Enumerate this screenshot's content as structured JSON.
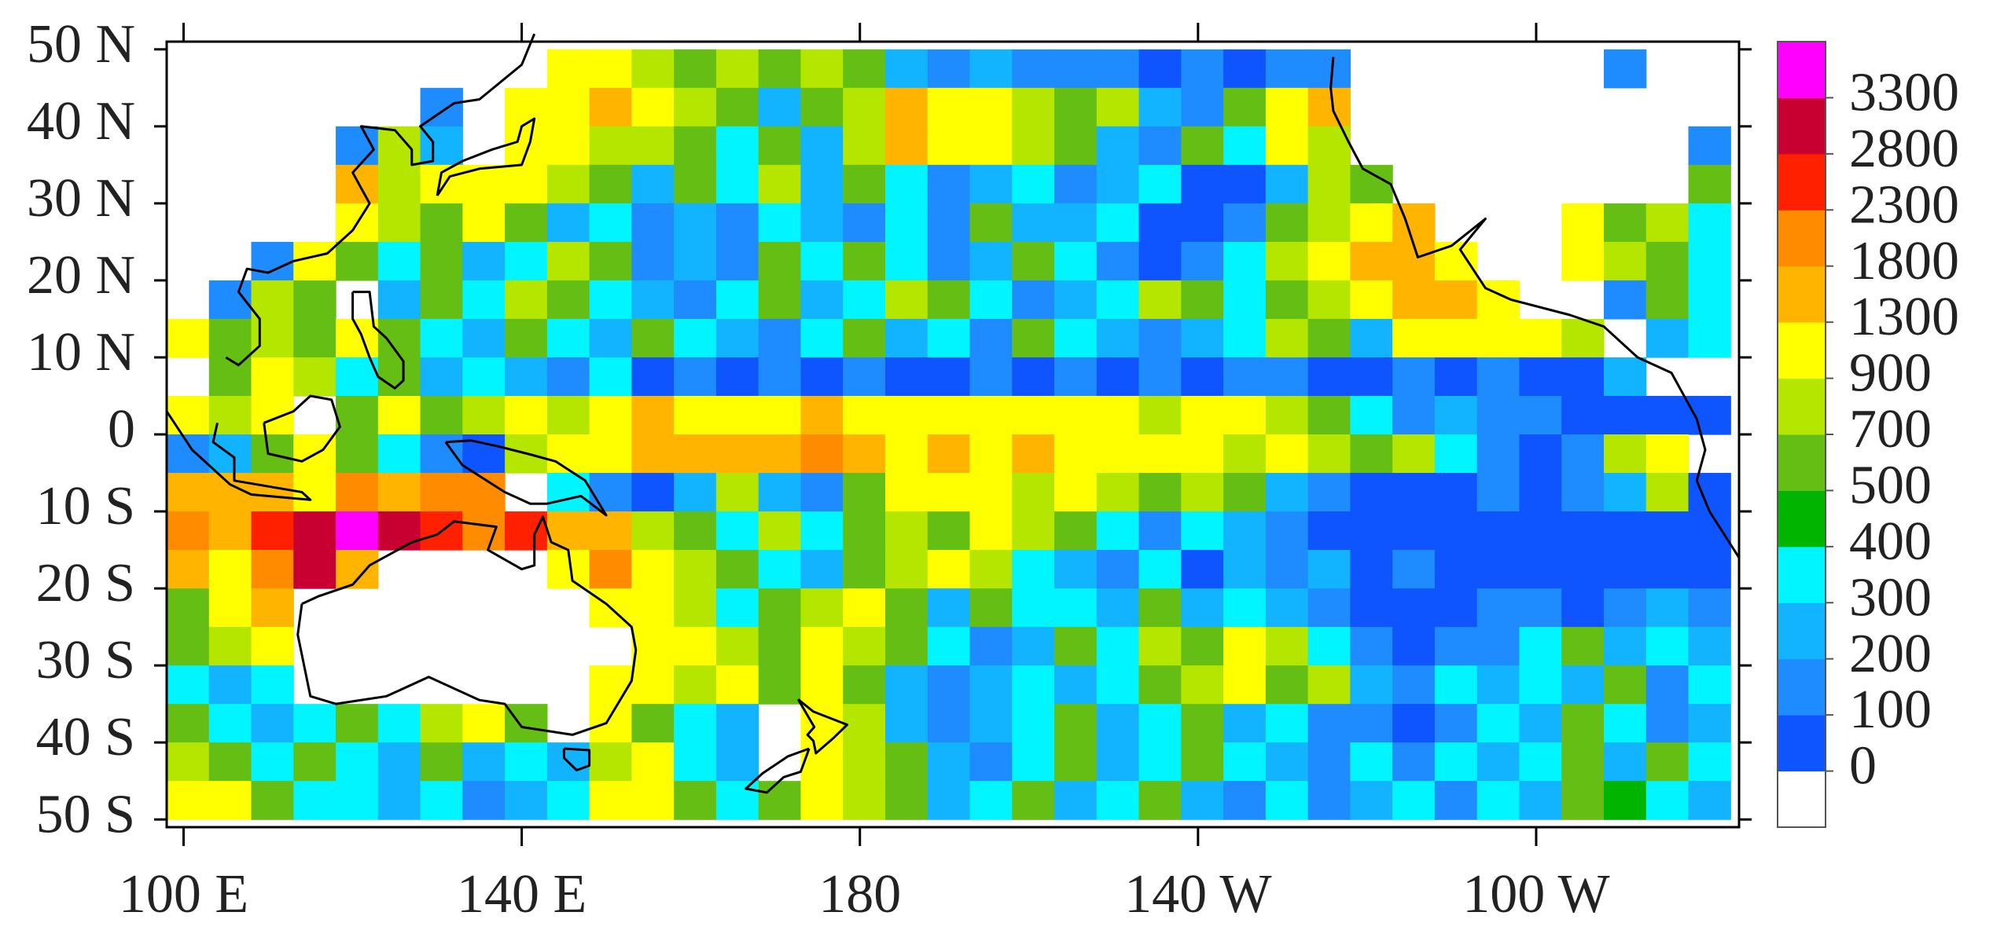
{
  "chart_data": {
    "type": "heatmap",
    "x": [
      100.5,
      105.5,
      110.5,
      115.5,
      120.5,
      125.5,
      130.5,
      135.5,
      140.5,
      145.5,
      150.5,
      155.5,
      160.5,
      165.5,
      170.5,
      175.5,
      180.5,
      185.5,
      190.5,
      195.5,
      200.5,
      205.5,
      210.5,
      215.5,
      220.5,
      225.5,
      230.5,
      235.5,
      240.5,
      245.5,
      250.5,
      255.5,
      260.5,
      265.5,
      270.5,
      275.5,
      280.5
    ],
    "y": [
      47.5,
      42.5,
      37.5,
      32.5,
      27.5,
      22.5,
      17.5,
      12.5,
      7.5,
      2.5,
      -2.5,
      -7.5,
      -12.5,
      -17.5,
      -22.5,
      -27.5,
      -32.5,
      -37.5,
      -42.5,
      -47.5
    ],
    "z": [
      [
        null,
        null,
        null,
        null,
        null,
        null,
        null,
        null,
        null,
        1100,
        1100,
        800,
        600,
        800,
        600,
        800,
        600,
        250,
        150,
        250,
        150,
        150,
        150,
        50,
        150,
        50,
        150,
        150,
        null,
        null,
        null,
        null,
        null,
        null,
        150,
        null,
        null
      ],
      [
        null,
        null,
        null,
        null,
        null,
        null,
        150,
        null,
        1100,
        1100,
        1550,
        1100,
        800,
        600,
        250,
        600,
        800,
        1550,
        1100,
        1100,
        800,
        600,
        800,
        250,
        150,
        600,
        1100,
        1550,
        null,
        null,
        null,
        null,
        null,
        null,
        null,
        null,
        null
      ],
      [
        null,
        null,
        null,
        null,
        150,
        800,
        250,
        null,
        1100,
        1100,
        800,
        800,
        600,
        350,
        600,
        250,
        800,
        1550,
        1100,
        1100,
        800,
        600,
        250,
        150,
        600,
        350,
        1100,
        800,
        null,
        null,
        null,
        null,
        null,
        null,
        null,
        null,
        150
      ],
      [
        null,
        null,
        null,
        null,
        1550,
        800,
        1100,
        1100,
        1100,
        800,
        600,
        250,
        600,
        350,
        800,
        250,
        600,
        350,
        150,
        250,
        350,
        150,
        250,
        350,
        50,
        50,
        250,
        800,
        600,
        null,
        null,
        null,
        null,
        null,
        null,
        null,
        600
      ],
      [
        null,
        null,
        null,
        null,
        1100,
        800,
        600,
        1100,
        600,
        250,
        350,
        150,
        250,
        150,
        350,
        250,
        150,
        350,
        150,
        600,
        250,
        250,
        350,
        50,
        50,
        150,
        600,
        800,
        1100,
        1550,
        null,
        null,
        null,
        1100,
        600,
        800,
        350
      ],
      [
        null,
        null,
        150,
        1100,
        600,
        350,
        600,
        250,
        350,
        800,
        600,
        150,
        250,
        150,
        600,
        350,
        600,
        350,
        150,
        250,
        600,
        350,
        150,
        50,
        150,
        350,
        800,
        1100,
        1550,
        1550,
        1100,
        null,
        null,
        1100,
        800,
        600,
        350
      ],
      [
        null,
        150,
        800,
        600,
        null,
        250,
        600,
        350,
        800,
        600,
        350,
        250,
        150,
        350,
        600,
        250,
        350,
        800,
        600,
        350,
        150,
        250,
        350,
        800,
        600,
        350,
        600,
        800,
        1100,
        1550,
        1550,
        1100,
        null,
        null,
        150,
        600,
        350
      ],
      [
        1100,
        600,
        800,
        600,
        1100,
        600,
        350,
        250,
        600,
        350,
        250,
        600,
        350,
        250,
        150,
        350,
        600,
        250,
        350,
        150,
        600,
        350,
        250,
        150,
        250,
        350,
        800,
        600,
        250,
        1100,
        1100,
        1100,
        1100,
        800,
        null,
        250,
        350
      ],
      [
        null,
        600,
        1100,
        800,
        350,
        600,
        250,
        350,
        250,
        150,
        350,
        50,
        150,
        50,
        150,
        50,
        150,
        50,
        50,
        150,
        50,
        150,
        50,
        150,
        50,
        150,
        150,
        50,
        50,
        150,
        50,
        150,
        50,
        50,
        250,
        null,
        null
      ],
      [
        1100,
        800,
        1100,
        null,
        600,
        1100,
        600,
        800,
        1100,
        800,
        1100,
        1550,
        1100,
        1100,
        1100,
        1550,
        1100,
        1100,
        1100,
        1100,
        1100,
        1100,
        1100,
        800,
        1100,
        1100,
        800,
        600,
        350,
        150,
        250,
        150,
        150,
        50,
        50,
        50,
        50
      ],
      [
        150,
        250,
        600,
        1100,
        600,
        350,
        150,
        50,
        800,
        1100,
        1100,
        1550,
        1550,
        1550,
        1550,
        2050,
        1550,
        1100,
        1550,
        1100,
        1550,
        1100,
        1100,
        1100,
        1100,
        800,
        1100,
        800,
        600,
        800,
        350,
        150,
        50,
        150,
        800,
        1100,
        null
      ],
      [
        1550,
        1550,
        1550,
        1100,
        2050,
        1550,
        2050,
        2050,
        null,
        350,
        150,
        50,
        250,
        800,
        250,
        150,
        600,
        1100,
        1100,
        1100,
        800,
        1100,
        800,
        600,
        800,
        600,
        250,
        150,
        50,
        50,
        50,
        150,
        50,
        150,
        250,
        800,
        50
      ],
      [
        2050,
        1550,
        2550,
        3050,
        3400,
        3050,
        2550,
        2050,
        2550,
        1550,
        1550,
        800,
        600,
        350,
        800,
        350,
        600,
        800,
        600,
        1100,
        800,
        600,
        350,
        150,
        350,
        250,
        150,
        50,
        50,
        50,
        50,
        50,
        50,
        50,
        50,
        50,
        50
      ],
      [
        1550,
        1100,
        2050,
        3050,
        1550,
        null,
        null,
        null,
        null,
        1100,
        2050,
        1100,
        800,
        600,
        350,
        250,
        600,
        800,
        1100,
        800,
        350,
        250,
        150,
        350,
        50,
        250,
        150,
        250,
        50,
        150,
        50,
        50,
        50,
        50,
        50,
        50,
        50
      ],
      [
        600,
        1100,
        1550,
        null,
        null,
        null,
        null,
        null,
        null,
        null,
        1100,
        1100,
        800,
        350,
        600,
        800,
        1100,
        600,
        250,
        600,
        350,
        350,
        250,
        600,
        250,
        350,
        250,
        150,
        50,
        50,
        50,
        150,
        150,
        50,
        150,
        250,
        150
      ],
      [
        600,
        800,
        1100,
        null,
        null,
        null,
        null,
        null,
        null,
        null,
        null,
        1100,
        1100,
        800,
        600,
        1100,
        800,
        600,
        350,
        150,
        250,
        600,
        350,
        800,
        600,
        1100,
        800,
        350,
        150,
        50,
        150,
        150,
        350,
        600,
        250,
        350,
        250
      ],
      [
        350,
        250,
        350,
        null,
        null,
        null,
        null,
        null,
        null,
        null,
        1100,
        1100,
        800,
        1100,
        600,
        1100,
        600,
        250,
        150,
        250,
        350,
        250,
        350,
        600,
        800,
        1100,
        600,
        800,
        250,
        150,
        350,
        250,
        350,
        250,
        600,
        150,
        350
      ],
      [
        600,
        350,
        250,
        350,
        600,
        350,
        800,
        1100,
        600,
        null,
        1100,
        600,
        350,
        250,
        null,
        1100,
        800,
        250,
        150,
        250,
        350,
        600,
        250,
        350,
        600,
        250,
        350,
        150,
        150,
        50,
        150,
        350,
        250,
        600,
        350,
        150,
        250
      ],
      [
        800,
        600,
        350,
        600,
        350,
        250,
        600,
        250,
        350,
        250,
        800,
        1100,
        350,
        250,
        null,
        1100,
        800,
        600,
        250,
        150,
        350,
        600,
        250,
        350,
        600,
        350,
        250,
        150,
        350,
        150,
        350,
        250,
        350,
        600,
        250,
        600,
        350
      ],
      [
        1100,
        1100,
        600,
        350,
        350,
        250,
        350,
        150,
        250,
        350,
        1100,
        1100,
        600,
        350,
        600,
        1100,
        800,
        600,
        250,
        350,
        600,
        250,
        350,
        600,
        250,
        150,
        350,
        150,
        250,
        350,
        150,
        350,
        250,
        600,
        450,
        350,
        250
      ]
    ],
    "xlim": [
      98,
      284
    ],
    "ylim": [
      -51,
      51
    ],
    "xticks": [
      {
        "value": 100,
        "label": "100 E"
      },
      {
        "value": 140,
        "label": "140 E"
      },
      180,
      {
        "value": 220,
        "label": "140 W"
      },
      {
        "value": 260,
        "label": "100 W"
      }
    ],
    "yticks": [
      {
        "value": -50,
        "label": "50 S"
      },
      {
        "value": -40,
        "label": "40 S"
      },
      {
        "value": -30,
        "label": "30 S"
      },
      {
        "value": -20,
        "label": "20 S"
      },
      {
        "value": -10,
        "label": "10 S"
      },
      0,
      {
        "value": 10,
        "label": "10 N"
      },
      {
        "value": 20,
        "label": "20 N"
      },
      {
        "value": 30,
        "label": "30 N"
      },
      {
        "value": 40,
        "label": "40 N"
      },
      {
        "value": 50,
        "label": "50 N"
      }
    ],
    "levels": [
      0,
      100,
      200,
      300,
      400,
      500,
      700,
      900,
      1300,
      1800,
      2300,
      2800,
      3300
    ],
    "colors": [
      "#ffffff",
      "#0f55ff",
      "#1e8cff",
      "#12b4ff",
      "#00f5ff",
      "#00b400",
      "#64be14",
      "#b4e600",
      "#ffff00",
      "#ffb400",
      "#ff8c00",
      "#ff2000",
      "#c80032",
      "#ff00ff"
    ]
  }
}
